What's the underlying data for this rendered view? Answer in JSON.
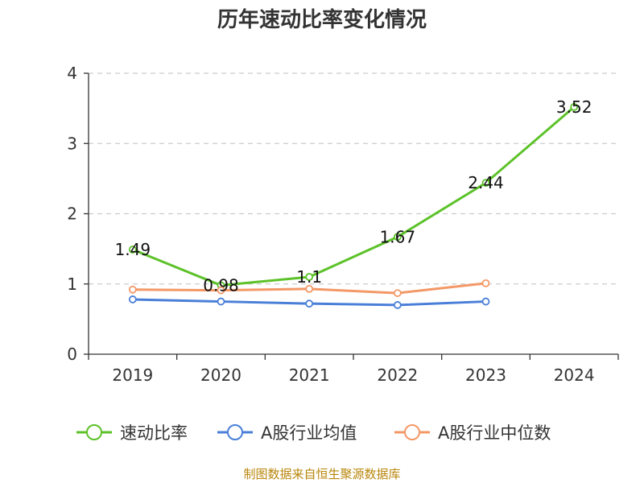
{
  "chart_data": {
    "type": "line",
    "title": "历年速动比率变化情况",
    "categories": [
      "2019",
      "2020",
      "2021",
      "2022",
      "2023",
      "2024"
    ],
    "ylim": [
      0,
      4
    ],
    "yticks": [
      0,
      1,
      2,
      3,
      4
    ],
    "grid": true,
    "legend_position": "bottom",
    "series": [
      {
        "name": "速动比率",
        "color": "#5cc229",
        "values": [
          1.49,
          0.98,
          1.1,
          1.67,
          2.44,
          3.52
        ],
        "labels": [
          "1.49",
          "0.98",
          "1.1",
          "1.67",
          "2.44",
          "3.52"
        ]
      },
      {
        "name": "A股行业均值",
        "color": "#4a7fd8",
        "values": [
          0.78,
          0.75,
          0.72,
          0.7,
          0.75,
          null
        ]
      },
      {
        "name": "A股行业中位数",
        "color": "#f39866",
        "values": [
          0.92,
          0.91,
          0.93,
          0.87,
          1.01,
          null
        ]
      }
    ],
    "source": "制图数据来自恒生聚源数据库"
  }
}
